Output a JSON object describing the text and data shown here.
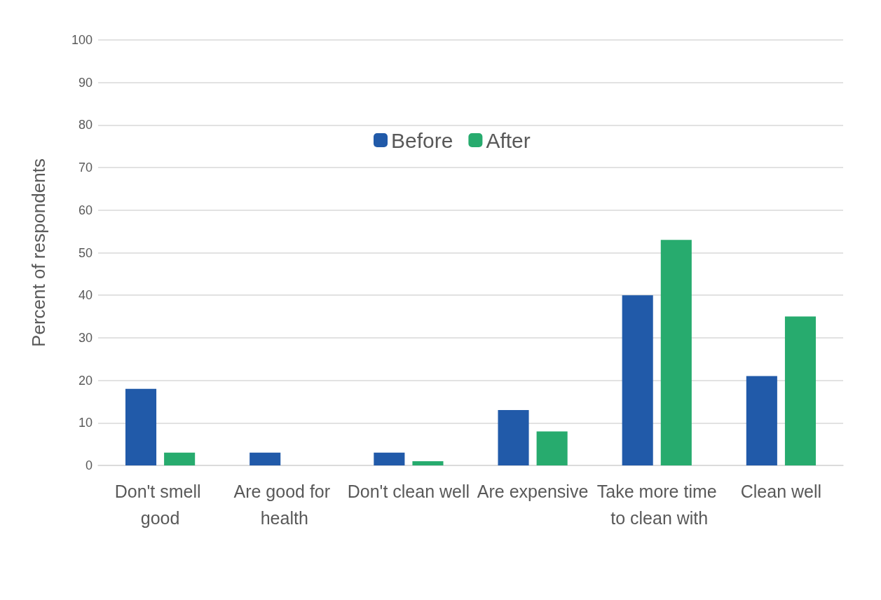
{
  "chart_data": {
    "type": "bar",
    "ylabel": "Percent of respondents",
    "categories": [
      "Don't smell good",
      "Are good for health",
      "Don't clean well",
      "Are expensive",
      "Take more time to clean with",
      "Clean well"
    ],
    "series": [
      {
        "name": "Before",
        "color": "#215aa9",
        "values": [
          18,
          3,
          3,
          13,
          40,
          21
        ]
      },
      {
        "name": "After",
        "color": "#27ab6e",
        "values": [
          3,
          0,
          1,
          8,
          53,
          35
        ]
      }
    ],
    "ylim": [
      0,
      100
    ],
    "yticks": [
      0,
      10,
      20,
      30,
      40,
      50,
      60,
      70,
      80,
      90,
      100
    ],
    "grid": "y",
    "legend": "top"
  }
}
